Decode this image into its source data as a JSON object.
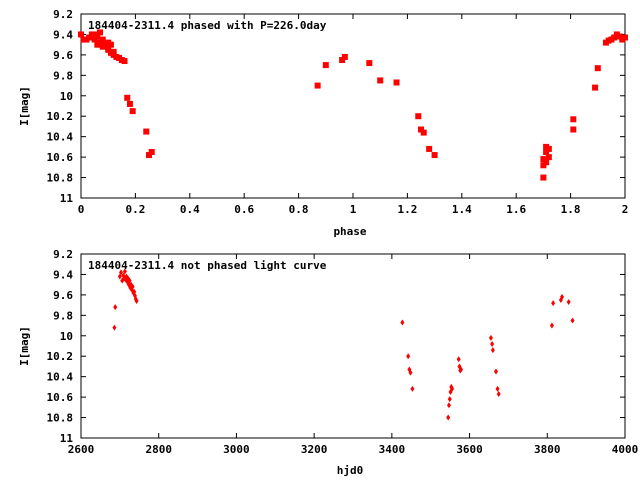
{
  "chart_data": [
    {
      "type": "scatter",
      "title": "184404-2311.4 phased with P=226.0day",
      "xlabel": "phase",
      "ylabel": "I[mag]",
      "xlim": [
        0,
        2
      ],
      "ylim": [
        11,
        9.2
      ],
      "y_inverted": true,
      "grid": false,
      "legend": "none",
      "marker_color": "#ff0000",
      "x_ticks": [
        "0",
        "0.2",
        "0.4",
        "0.6",
        "0.8",
        "1",
        "1.2",
        "1.4",
        "1.6",
        "1.8",
        "2"
      ],
      "y_ticks": [
        "9.2",
        "9.4",
        "9.6",
        "9.8",
        "10",
        "10.2",
        "10.4",
        "10.6",
        "10.8",
        "11"
      ],
      "series": [
        {
          "x": [
            0.0,
            0.01,
            0.02,
            0.03,
            0.04,
            0.05,
            0.05,
            0.06,
            0.06,
            0.07,
            0.07,
            0.08,
            0.08,
            0.09,
            0.1,
            0.1,
            0.11,
            0.11,
            0.12,
            0.12,
            0.13,
            0.14,
            0.15,
            0.16,
            0.17,
            0.18,
            0.19,
            0.24,
            0.25,
            0.26,
            0.87,
            0.9,
            0.96,
            0.97,
            1.06,
            1.1,
            1.16,
            1.24,
            1.25,
            1.26,
            1.28,
            1.3,
            1.7,
            1.7,
            1.7,
            1.71,
            1.71,
            1.71,
            1.72,
            1.72,
            1.81,
            1.81,
            1.89,
            1.9,
            1.93,
            1.94,
            1.95,
            1.96,
            1.97,
            1.98,
            1.99,
            2.0
          ],
          "y": [
            9.4,
            9.45,
            9.45,
            9.43,
            9.4,
            9.4,
            9.45,
            9.5,
            9.42,
            9.38,
            9.48,
            9.45,
            9.52,
            9.5,
            9.48,
            9.55,
            9.5,
            9.58,
            9.57,
            9.6,
            9.62,
            9.63,
            9.65,
            9.66,
            10.02,
            10.08,
            10.15,
            10.35,
            10.58,
            10.55,
            9.9,
            9.7,
            9.65,
            9.62,
            9.68,
            9.85,
            9.87,
            10.2,
            10.33,
            10.36,
            10.52,
            10.58,
            10.8,
            10.68,
            10.62,
            10.55,
            10.5,
            10.65,
            10.52,
            10.6,
            10.23,
            10.33,
            9.92,
            9.73,
            9.48,
            9.46,
            9.45,
            9.43,
            9.4,
            9.42,
            9.45,
            9.43
          ]
        }
      ]
    },
    {
      "type": "scatter",
      "title": "184404-2311.4 not phased light curve",
      "xlabel": "hjd0",
      "ylabel": "I[mag]",
      "xlim": [
        2600,
        4000
      ],
      "ylim": [
        11,
        9.2
      ],
      "y_inverted": true,
      "grid": false,
      "legend": "none",
      "marker_color": "#ff0000",
      "x_ticks": [
        "2600",
        "2800",
        "3000",
        "3200",
        "3400",
        "3600",
        "3800",
        "4000"
      ],
      "y_ticks": [
        "9.2",
        "9.4",
        "9.6",
        "9.8",
        "10",
        "10.2",
        "10.4",
        "10.6",
        "10.8",
        "11"
      ],
      "series": [
        {
          "x": [
            2686,
            2688,
            2700,
            2703,
            2706,
            2709,
            2711,
            2713,
            2715,
            2717,
            2719,
            2721,
            2723,
            2725,
            2727,
            2729,
            2731,
            2733,
            2735,
            2737,
            2739,
            2741,
            2743,
            3427,
            3442,
            3445,
            3448,
            3453,
            3545,
            3547,
            3549,
            3551,
            3553,
            3555,
            3572,
            3574,
            3576,
            3578,
            3655,
            3658,
            3660,
            3668,
            3672,
            3675,
            3812,
            3815,
            3835,
            3838,
            3855,
            3865
          ],
          "y": [
            9.92,
            9.72,
            9.42,
            9.38,
            9.46,
            9.41,
            9.44,
            9.37,
            9.45,
            9.42,
            9.47,
            9.44,
            9.5,
            9.46,
            9.53,
            9.5,
            9.55,
            9.52,
            9.58,
            9.57,
            9.61,
            9.64,
            9.66,
            9.87,
            10.2,
            10.33,
            10.36,
            10.52,
            10.8,
            10.68,
            10.62,
            10.55,
            10.5,
            10.52,
            10.23,
            10.3,
            10.34,
            10.33,
            10.02,
            10.08,
            10.14,
            10.35,
            10.52,
            10.57,
            9.9,
            9.68,
            9.65,
            9.62,
            9.67,
            9.85
          ]
        }
      ]
    }
  ]
}
